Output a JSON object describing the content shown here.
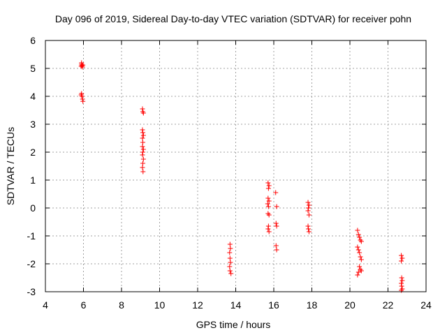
{
  "chart_data": {
    "type": "scatter",
    "title": "Day 096 of 2019, Sidereal Day-to-day VTEC variation (SDTVAR) for receiver pohn",
    "xlabel": "GPS time / hours",
    "ylabel": "SDTVAR / TECUs",
    "xlim": [
      4,
      24
    ],
    "ylim": [
      -3,
      6
    ],
    "xticks": [
      4,
      6,
      8,
      10,
      12,
      14,
      16,
      18,
      20,
      22,
      24
    ],
    "yticks": [
      -3,
      -2,
      -1,
      0,
      1,
      2,
      3,
      4,
      5,
      6
    ],
    "grid": true,
    "marker": "+",
    "colors": {
      "points": "#ff0000",
      "grid": "#a0a0a0",
      "axes": "#000000"
    },
    "series": [
      {
        "name": "SDTVAR",
        "points": [
          [
            5.9,
            5.15
          ],
          [
            5.92,
            5.1
          ],
          [
            5.95,
            5.05
          ],
          [
            5.88,
            5.08
          ],
          [
            5.97,
            5.12
          ],
          [
            5.9,
            5.2
          ],
          [
            5.9,
            4.1
          ],
          [
            5.92,
            4.0
          ],
          [
            5.95,
            3.9
          ],
          [
            5.97,
            3.82
          ],
          [
            5.88,
            4.05
          ],
          [
            9.1,
            3.55
          ],
          [
            9.12,
            3.45
          ],
          [
            9.15,
            3.4
          ],
          [
            9.1,
            2.8
          ],
          [
            9.12,
            2.7
          ],
          [
            9.15,
            2.6
          ],
          [
            9.1,
            2.5
          ],
          [
            9.12,
            2.35
          ],
          [
            9.1,
            2.2
          ],
          [
            9.15,
            2.1
          ],
          [
            9.12,
            2.0
          ],
          [
            9.1,
            1.9
          ],
          [
            9.15,
            1.75
          ],
          [
            9.12,
            1.6
          ],
          [
            9.1,
            1.45
          ],
          [
            9.13,
            1.3
          ],
          [
            13.7,
            -1.3
          ],
          [
            13.72,
            -1.45
          ],
          [
            13.68,
            -1.6
          ],
          [
            13.7,
            -1.8
          ],
          [
            13.72,
            -1.95
          ],
          [
            13.68,
            -2.1
          ],
          [
            13.7,
            -2.25
          ],
          [
            13.75,
            -2.35
          ],
          [
            15.7,
            0.9
          ],
          [
            15.75,
            0.8
          ],
          [
            15.72,
            0.7
          ],
          [
            15.7,
            0.35
          ],
          [
            15.75,
            0.25
          ],
          [
            15.68,
            0.15
          ],
          [
            15.72,
            0.05
          ],
          [
            15.7,
            -0.2
          ],
          [
            15.75,
            -0.25
          ],
          [
            15.72,
            -0.65
          ],
          [
            15.7,
            -0.75
          ],
          [
            15.75,
            -0.85
          ],
          [
            16.1,
            0.55
          ],
          [
            16.15,
            0.05
          ],
          [
            16.12,
            -0.55
          ],
          [
            16.15,
            -0.65
          ],
          [
            16.12,
            -1.35
          ],
          [
            16.15,
            -1.5
          ],
          [
            17.8,
            0.2
          ],
          [
            17.85,
            0.1
          ],
          [
            17.82,
            0.0
          ],
          [
            17.8,
            -0.1
          ],
          [
            17.85,
            -0.25
          ],
          [
            17.8,
            -0.65
          ],
          [
            17.82,
            -0.75
          ],
          [
            17.85,
            -0.85
          ],
          [
            20.4,
            -0.8
          ],
          [
            20.45,
            -0.95
          ],
          [
            20.5,
            -1.05
          ],
          [
            20.55,
            -1.15
          ],
          [
            20.6,
            -1.2
          ],
          [
            20.4,
            -1.4
          ],
          [
            20.45,
            -1.5
          ],
          [
            20.5,
            -1.6
          ],
          [
            20.55,
            -1.75
          ],
          [
            20.6,
            -1.85
          ],
          [
            20.5,
            -2.1
          ],
          [
            20.55,
            -2.2
          ],
          [
            20.45,
            -2.3
          ],
          [
            20.4,
            -2.4
          ],
          [
            20.6,
            -2.25
          ],
          [
            22.7,
            -1.7
          ],
          [
            22.75,
            -1.8
          ],
          [
            22.7,
            -1.9
          ],
          [
            22.72,
            -2.5
          ],
          [
            22.75,
            -2.6
          ],
          [
            22.7,
            -2.7
          ],
          [
            22.72,
            -2.8
          ],
          [
            22.75,
            -2.9
          ],
          [
            22.7,
            -2.95
          ]
        ]
      }
    ]
  }
}
